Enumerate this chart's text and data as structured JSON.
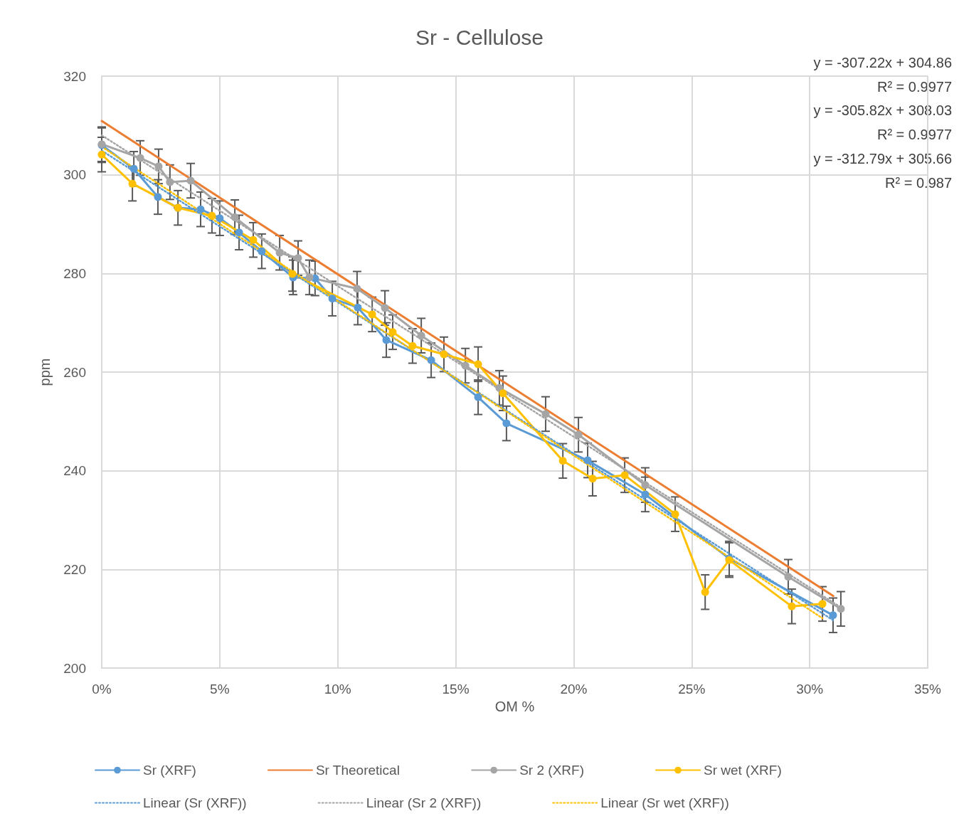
{
  "chart_data": {
    "type": "line",
    "title": "Sr - Cellulose",
    "xlabel": "OM %",
    "ylabel": "ppm",
    "xlim": [
      0,
      35
    ],
    "xticks": [
      {
        "value": 0,
        "label": "0%"
      },
      {
        "value": 5,
        "label": "5%"
      },
      {
        "value": 10,
        "label": "10%"
      },
      {
        "value": 15,
        "label": "15%"
      },
      {
        "value": 20,
        "label": "20%"
      },
      {
        "value": 25,
        "label": "25%"
      },
      {
        "value": 30,
        "label": "30%"
      },
      {
        "value": 35,
        "label": "35%"
      }
    ],
    "ylim": [
      200,
      320
    ],
    "yticks": [
      200,
      220,
      240,
      260,
      280,
      300,
      320
    ],
    "grid": true,
    "legend": "bottom",
    "annotations": [
      "y = -307.22x + 304.86",
      "R² = 0.9977",
      "y = -305.82x + 308.03",
      "R² = 0.9977",
      "y = -312.79x + 305.66",
      "R² = 0.987"
    ],
    "series": [
      {
        "name": "Sr (XRF)",
        "color": "#5b9bd5",
        "marker": "circle",
        "line_style": "solid",
        "x": [
          0,
          1.36,
          2.38,
          3.23,
          4.19,
          5.0,
          5.82,
          6.78,
          8.11,
          9.04,
          9.77,
          10.85,
          12.06,
          13.96,
          15.95,
          17.15,
          20.59,
          23.03,
          26.59,
          30.99
        ],
        "values": [
          306.0,
          301.2,
          295.5,
          293.3,
          293.0,
          291.2,
          288.3,
          284.5,
          279.2,
          279.0,
          274.9,
          273.1,
          266.5,
          262.4,
          254.9,
          249.6,
          242.1,
          235.2,
          222.2,
          210.7
        ],
        "errors": [
          3.5,
          3.5,
          3.5,
          3.5,
          3.5,
          3.5,
          3.5,
          3.5,
          3.5,
          3.5,
          3.5,
          3.5,
          3.5,
          3.5,
          3.5,
          3.5,
          3.5,
          3.5,
          3.5,
          3.5
        ]
      },
      {
        "name": "Sr Theoretical",
        "color": "#ed7d31",
        "marker": "none",
        "line_style": "solid",
        "x": [
          0,
          31.0
        ],
        "values": [
          310.9,
          214.6
        ]
      },
      {
        "name": "Sr 2 (XRF)",
        "color": "#a5a5a5",
        "marker": "circle",
        "line_style": "solid",
        "x": [
          0,
          1.63,
          2.41,
          2.89,
          3.77,
          5.64,
          7.54,
          8.32,
          8.8,
          10.82,
          12.0,
          13.54,
          15.41,
          16.85,
          18.81,
          20.2,
          23.03,
          29.09,
          31.32
        ],
        "values": [
          306.2,
          303.4,
          301.7,
          298.5,
          298.8,
          291.4,
          284.2,
          283.1,
          279.2,
          276.9,
          273.0,
          267.4,
          261.3,
          256.8,
          251.5,
          247.3,
          237.1,
          218.5,
          212.0
        ],
        "errors": [
          3.5,
          3.5,
          3.5,
          3.5,
          3.5,
          3.5,
          3.5,
          3.5,
          3.5,
          3.5,
          3.5,
          3.5,
          3.5,
          3.5,
          3.5,
          3.5,
          3.5,
          3.5,
          3.5
        ]
      },
      {
        "name": "Sr wet (XRF)",
        "color": "#ffc000",
        "marker": "circle",
        "line_style": "solid",
        "x": [
          0,
          1.3,
          3.23,
          4.67,
          6.42,
          8.08,
          11.46,
          12.33,
          13.17,
          14.5,
          15.95,
          17.0,
          19.54,
          20.8,
          22.16,
          24.3,
          25.57,
          26.59,
          29.24,
          30.54
        ],
        "values": [
          304.1,
          298.2,
          293.3,
          291.7,
          286.8,
          279.9,
          271.7,
          268.1,
          265.3,
          263.6,
          261.6,
          255.7,
          242.0,
          238.4,
          239.1,
          231.2,
          215.4,
          221.9,
          212.5,
          213.0
        ],
        "errors": [
          3.5,
          3.5,
          null,
          3.5,
          3.5,
          3.5,
          3.5,
          3.5,
          3.5,
          3.5,
          3.5,
          3.5,
          3.5,
          3.5,
          3.5,
          3.5,
          3.5,
          3.5,
          3.5,
          3.5
        ]
      },
      {
        "name": "Linear (Sr (XRF))",
        "color": "#5b9bd5",
        "marker": "none",
        "line_style": "dotted",
        "x": [
          0,
          30.99
        ],
        "values": [
          304.9,
          209.7
        ]
      },
      {
        "name": "Linear (Sr 2 (XRF))",
        "color": "#a5a5a5",
        "marker": "none",
        "line_style": "dotted",
        "x": [
          0,
          31.32
        ],
        "values": [
          308.0,
          212.3
        ]
      },
      {
        "name": "Linear (Sr wet (XRF))",
        "color": "#ffc000",
        "marker": "none",
        "line_style": "dotted",
        "x": [
          0,
          30.54
        ],
        "values": [
          305.7,
          210.1
        ]
      }
    ]
  }
}
